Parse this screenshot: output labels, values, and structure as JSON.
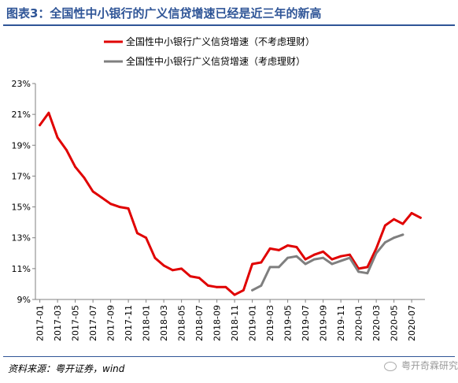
{
  "header": {
    "title": "图表3：全国性中小银行的广义信贷增速已经是近三年的新高"
  },
  "footer": {
    "source": "资料来源：粤开证券，wind",
    "watermark": "粤开奇霖研究"
  },
  "colors": {
    "accent": "#2f5597",
    "series_red": "#e00000",
    "series_gray": "#7f7f7f"
  },
  "chart_data": {
    "type": "line",
    "ylim": [
      9,
      23
    ],
    "yticks": [
      9,
      11,
      13,
      15,
      17,
      19,
      21,
      23
    ],
    "ytick_labels": [
      "9%",
      "11%",
      "13%",
      "15%",
      "17%",
      "19%",
      "21%",
      "23%"
    ],
    "xtick_labels": [
      "2017-01",
      "2017-03",
      "2017-05",
      "2017-07",
      "2017-09",
      "2017-11",
      "2018-01",
      "2018-03",
      "2018-05",
      "2018-07",
      "2018-09",
      "2018-11",
      "2019-01",
      "2019-03",
      "2019-05",
      "2019-07",
      "2019-09",
      "2019-11",
      "2020-01",
      "2020-03",
      "2020-05",
      "2020-07"
    ],
    "x": [
      "2017-01",
      "2017-02",
      "2017-03",
      "2017-04",
      "2017-05",
      "2017-06",
      "2017-07",
      "2017-08",
      "2017-09",
      "2017-10",
      "2017-11",
      "2017-12",
      "2018-01",
      "2018-02",
      "2018-03",
      "2018-04",
      "2018-05",
      "2018-06",
      "2018-07",
      "2018-08",
      "2018-09",
      "2018-10",
      "2018-11",
      "2018-12",
      "2019-01",
      "2019-02",
      "2019-03",
      "2019-04",
      "2019-05",
      "2019-06",
      "2019-07",
      "2019-08",
      "2019-09",
      "2019-10",
      "2019-11",
      "2019-12",
      "2020-01",
      "2020-02",
      "2020-03",
      "2020-04",
      "2020-05",
      "2020-06",
      "2020-07",
      "2020-08"
    ],
    "series": [
      {
        "name": "全国性中小银行广义信贷增速（不考虑理财）",
        "color": "#e00000",
        "values": [
          20.3,
          21.1,
          19.5,
          18.7,
          17.6,
          16.9,
          16.0,
          15.6,
          15.2,
          15.0,
          14.9,
          13.3,
          13.0,
          11.7,
          11.2,
          10.9,
          11.0,
          10.5,
          10.4,
          9.9,
          9.8,
          9.8,
          9.3,
          9.6,
          11.3,
          11.4,
          12.3,
          12.2,
          12.5,
          12.4,
          11.6,
          11.9,
          12.1,
          11.6,
          11.8,
          11.9,
          11.0,
          11.1,
          12.3,
          13.8,
          14.2,
          13.9,
          14.6,
          14.3
        ]
      },
      {
        "name": "全国性中小银行广义信贷增速（考虑理财）",
        "color": "#7f7f7f",
        "values": [
          null,
          null,
          null,
          null,
          null,
          null,
          null,
          null,
          null,
          null,
          null,
          null,
          null,
          null,
          null,
          null,
          null,
          null,
          null,
          null,
          null,
          null,
          null,
          null,
          9.6,
          9.9,
          11.1,
          11.1,
          11.7,
          11.8,
          11.3,
          11.6,
          11.7,
          11.3,
          11.5,
          11.7,
          10.8,
          10.7,
          12.0,
          12.7,
          13.0,
          13.2,
          null,
          null
        ]
      }
    ]
  }
}
